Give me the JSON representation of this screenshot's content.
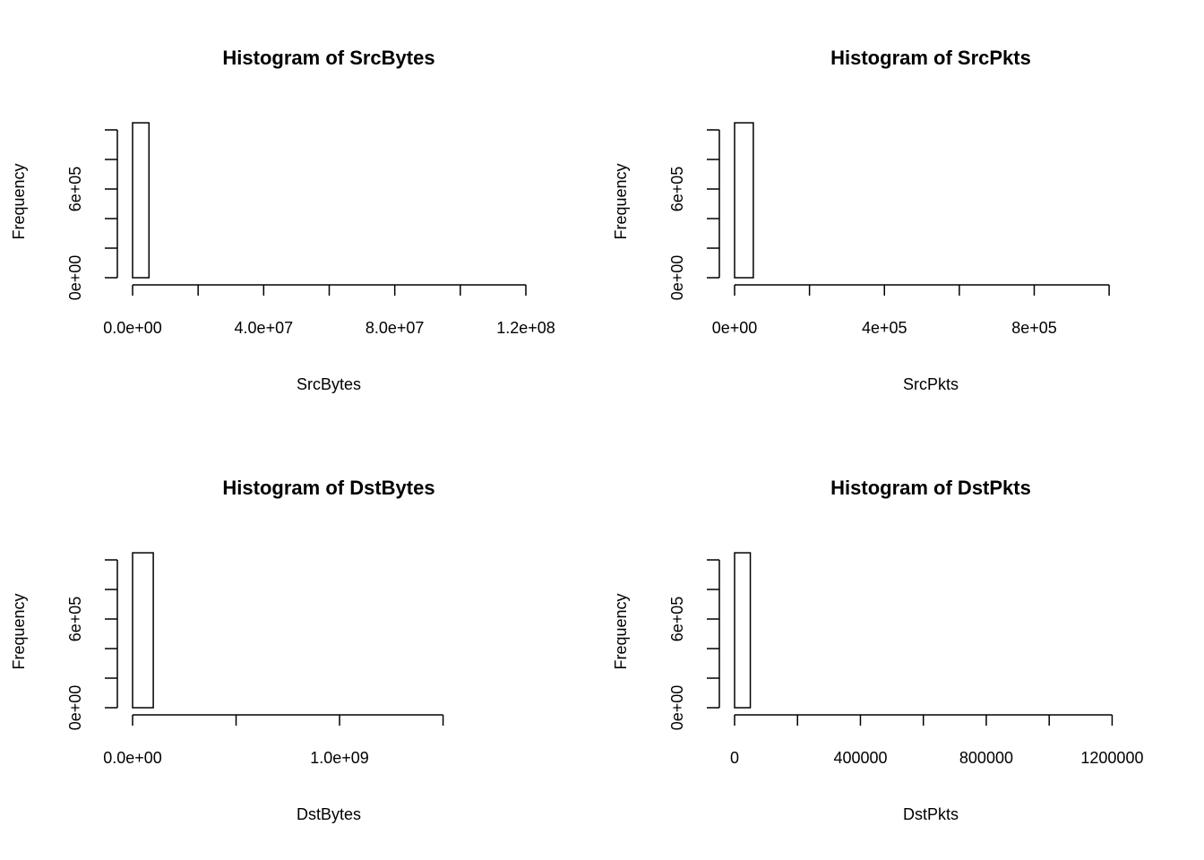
{
  "chart_data": [
    {
      "type": "histogram",
      "title": "Histogram of SrcBytes",
      "xlabel": "SrcBytes",
      "ylabel": "Frequency",
      "bins": [
        0,
        5000000,
        10000000,
        15000000,
        20000000,
        25000000,
        30000000,
        35000000,
        40000000,
        45000000,
        50000000,
        55000000,
        60000000,
        65000000,
        70000000,
        75000000,
        80000000,
        85000000,
        90000000,
        95000000,
        100000000,
        105000000,
        110000000,
        115000000,
        120000000
      ],
      "values": [
        1048000,
        0,
        0,
        0,
        0,
        0,
        0,
        0,
        0,
        0,
        0,
        0,
        0,
        0,
        0,
        0,
        0,
        0,
        0,
        0,
        0,
        0,
        0,
        0
      ],
      "color": "#ffffff",
      "xlim": [
        0,
        120000000
      ],
      "xticks": [
        {
          "value": 0,
          "label": "0.0e+00"
        },
        {
          "value": 20000000,
          "label": null
        },
        {
          "value": 40000000,
          "label": "4.0e+07"
        },
        {
          "value": 60000000,
          "label": null
        },
        {
          "value": 80000000,
          "label": "8.0e+07"
        },
        {
          "value": 100000000,
          "label": null
        },
        {
          "value": 120000000,
          "label": "1.2e+08"
        }
      ],
      "ylim": [
        0,
        1050000
      ],
      "yticks": [
        {
          "value": 0,
          "label": "0e+00"
        },
        {
          "value": 200000,
          "label": null
        },
        {
          "value": 400000,
          "label": null
        },
        {
          "value": 600000,
          "label": "6e+05"
        },
        {
          "value": 800000,
          "label": null
        },
        {
          "value": 1000000,
          "label": null
        }
      ]
    },
    {
      "type": "histogram",
      "title": "Histogram of SrcPkts",
      "xlabel": "SrcPkts",
      "ylabel": "Frequency",
      "bins": [
        0,
        50000,
        100000,
        150000,
        200000,
        250000,
        300000,
        350000,
        400000,
        450000,
        500000,
        550000,
        600000,
        650000,
        700000,
        750000,
        800000,
        850000,
        900000,
        950000,
        1000000,
        1050000
      ],
      "values": [
        1048000,
        0,
        0,
        0,
        0,
        0,
        0,
        0,
        0,
        0,
        0,
        0,
        0,
        0,
        0,
        0,
        0,
        0,
        0,
        0,
        0
      ],
      "color": "#ffffff",
      "xlim": [
        0,
        1050000
      ],
      "xticks": [
        {
          "value": 0,
          "label": "0e+00"
        },
        {
          "value": 200000,
          "label": null
        },
        {
          "value": 400000,
          "label": "4e+05"
        },
        {
          "value": 600000,
          "label": null
        },
        {
          "value": 800000,
          "label": "8e+05"
        },
        {
          "value": 1000000,
          "label": null
        }
      ],
      "ylim": [
        0,
        1050000
      ],
      "yticks": [
        {
          "value": 0,
          "label": "0e+00"
        },
        {
          "value": 200000,
          "label": null
        },
        {
          "value": 400000,
          "label": null
        },
        {
          "value": 600000,
          "label": "6e+05"
        },
        {
          "value": 800000,
          "label": null
        },
        {
          "value": 1000000,
          "label": null
        }
      ]
    },
    {
      "type": "histogram",
      "title": "Histogram of DstBytes",
      "xlabel": "DstBytes",
      "ylabel": "Frequency",
      "bins": [
        0,
        100000000,
        200000000,
        300000000,
        400000000,
        500000000,
        600000000,
        700000000,
        800000000,
        900000000,
        1000000000,
        1100000000,
        1200000000,
        1300000000,
        1400000000,
        1500000000,
        1600000000,
        1700000000,
        1800000000,
        1900000000
      ],
      "values": [
        1048000,
        0,
        0,
        0,
        0,
        0,
        0,
        0,
        0,
        0,
        0,
        0,
        0,
        0,
        0,
        0,
        0,
        0,
        0
      ],
      "color": "#ffffff",
      "xlim": [
        0,
        1900000000
      ],
      "xticks": [
        {
          "value": 0,
          "label": "0.0e+00"
        },
        {
          "value": 500000000,
          "label": null
        },
        {
          "value": 1000000000,
          "label": "1.0e+09"
        },
        {
          "value": 1500000000,
          "label": null
        }
      ],
      "ylim": [
        0,
        1050000
      ],
      "yticks": [
        {
          "value": 0,
          "label": "0e+00"
        },
        {
          "value": 200000,
          "label": null
        },
        {
          "value": 400000,
          "label": null
        },
        {
          "value": 600000,
          "label": "6e+05"
        },
        {
          "value": 800000,
          "label": null
        },
        {
          "value": 1000000,
          "label": null
        }
      ]
    },
    {
      "type": "histogram",
      "title": "Histogram of DstPkts",
      "xlabel": "DstPkts",
      "ylabel": "Frequency",
      "bins": [
        0,
        50000,
        100000,
        150000,
        200000,
        250000,
        300000,
        350000,
        400000,
        450000,
        500000,
        550000,
        600000,
        650000,
        700000,
        750000,
        800000,
        850000,
        900000,
        950000,
        1000000,
        1050000,
        1100000,
        1150000,
        1200000,
        1250000
      ],
      "values": [
        1048000,
        0,
        0,
        0,
        0,
        0,
        0,
        0,
        0,
        0,
        0,
        0,
        0,
        0,
        0,
        0,
        0,
        0,
        0,
        0,
        0,
        0,
        0,
        0,
        0
      ],
      "color": "#ffffff",
      "xlim": [
        0,
        1250000
      ],
      "xticks": [
        0,
        {
          "value": 200000,
          "label": null
        },
        400000,
        {
          "value": 600000,
          "label": null
        },
        800000,
        {
          "value": 1000000,
          "label": null
        },
        1200000
      ],
      "ylim": [
        0,
        1050000
      ],
      "yticks": [
        {
          "value": 0,
          "label": "0e+00"
        },
        {
          "value": 200000,
          "label": null
        },
        {
          "value": 400000,
          "label": null
        },
        {
          "value": 600000,
          "label": "6e+05"
        },
        {
          "value": 800000,
          "label": null
        },
        {
          "value": 1000000,
          "label": null
        }
      ]
    }
  ]
}
